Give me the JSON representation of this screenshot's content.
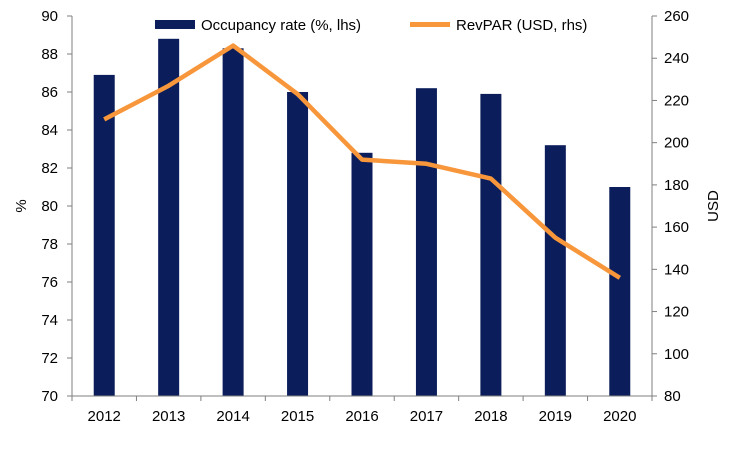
{
  "chart_data": {
    "type": "bar+line",
    "categories": [
      "2012",
      "2013",
      "2014",
      "2015",
      "2016",
      "2017",
      "2018",
      "2019",
      "2020"
    ],
    "series": [
      {
        "name": "Occupancy rate (%, lhs)",
        "type": "bar",
        "axis": "left",
        "color": "#0b1e5b",
        "values": [
          86.9,
          88.8,
          88.3,
          86.0,
          82.8,
          86.2,
          85.9,
          83.2,
          81.0
        ]
      },
      {
        "name": "RevPAR (USD, rhs)",
        "type": "line",
        "axis": "right",
        "color": "#f7963a",
        "values": [
          211,
          227,
          246,
          223,
          192,
          190,
          183,
          155,
          136
        ]
      }
    ],
    "y_left": {
      "label": "%",
      "ylim": [
        70,
        90
      ],
      "ticks": [
        "70",
        "72",
        "74",
        "76",
        "78",
        "80",
        "82",
        "84",
        "86",
        "88",
        "90"
      ]
    },
    "y_right": {
      "label": "USD",
      "ylim": [
        80,
        260
      ],
      "ticks": [
        "80",
        "100",
        "120",
        "140",
        "160",
        "180",
        "200",
        "220",
        "240",
        "260"
      ]
    },
    "grid": false,
    "legend_position": "top"
  }
}
